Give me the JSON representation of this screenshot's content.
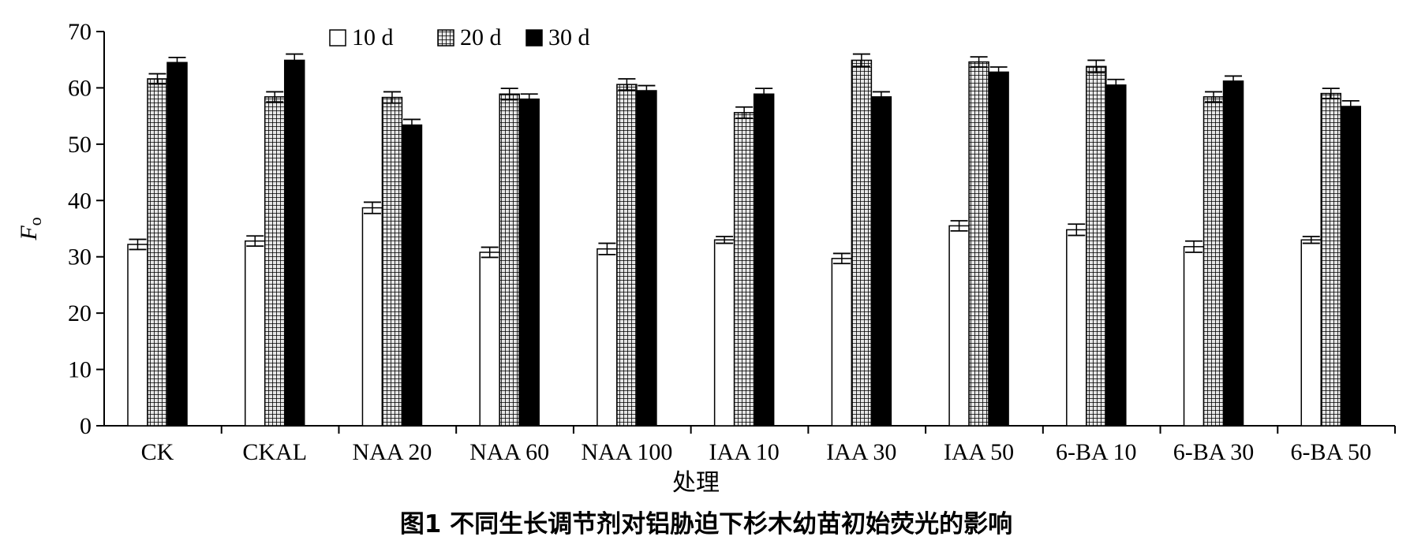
{
  "chart_data": {
    "type": "bar",
    "caption": "图1   不同生长调节剂对铝胁迫下杉木幼苗初始荧光的影响",
    "xlabel": "处理",
    "ylabel_main": "F",
    "ylabel_sub": "o",
    "ylim": [
      0,
      70
    ],
    "yticks": [
      "0",
      "10",
      "20",
      "30",
      "40",
      "50",
      "60",
      "70"
    ],
    "legend_position": "top-left",
    "categories": [
      "CK",
      "CKAL",
      "NAA 20",
      "NAA 60",
      "NAA 100",
      "IAA 10",
      "IAA 30",
      "IAA 50",
      "6-BA 10",
      "6-BA 30",
      "6-BA 50"
    ],
    "series": [
      {
        "name": "10 d",
        "pattern": "white",
        "values": [
          32.2,
          32.8,
          38.7,
          30.8,
          31.4,
          33.0,
          29.7,
          35.5,
          34.8,
          31.8,
          33.0
        ],
        "errors": [
          0.9,
          0.9,
          1.0,
          0.9,
          1.0,
          0.6,
          0.9,
          0.9,
          1.0,
          1.0,
          0.6
        ]
      },
      {
        "name": "20 d",
        "pattern": "grid",
        "values": [
          61.6,
          58.4,
          58.3,
          58.9,
          60.6,
          55.6,
          64.9,
          64.6,
          63.8,
          58.4,
          59.0
        ],
        "errors": [
          0.9,
          0.9,
          1.0,
          1.0,
          1.0,
          1.0,
          1.1,
          0.9,
          1.1,
          0.9,
          0.9
        ]
      },
      {
        "name": "30 d",
        "pattern": "black",
        "values": [
          64.5,
          64.9,
          53.4,
          58.0,
          59.5,
          58.9,
          58.4,
          62.8,
          60.5,
          61.2,
          56.7
        ],
        "errors": [
          0.9,
          1.1,
          1.0,
          0.9,
          0.9,
          1.0,
          0.9,
          0.9,
          1.0,
          0.9,
          1.0
        ]
      }
    ],
    "colors": {
      "axis": "#000000",
      "bar_stroke": "#000000",
      "bar_white": "#ffffff",
      "bar_black": "#000000",
      "grid_fill": "#e6e6e6",
      "grid_line": "#000000"
    }
  }
}
